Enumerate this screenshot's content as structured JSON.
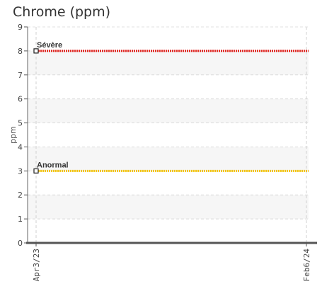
{
  "chart_data": {
    "type": "line",
    "title": "Chrome (ppm)",
    "ylabel": "ppm",
    "xlabel": "",
    "ylim": [
      0,
      9
    ],
    "y_ticks": [
      0,
      1,
      2,
      3,
      4,
      5,
      6,
      7,
      8,
      9
    ],
    "x_ticks": [
      "Apr3/23",
      "Feb6/24"
    ],
    "grid": true,
    "series": [
      {
        "name": "Sévère",
        "values": [
          8,
          8
        ],
        "color": "#e0201c"
      },
      {
        "name": "Anormal",
        "values": [
          3,
          3
        ],
        "color": "#f2c200"
      }
    ]
  }
}
